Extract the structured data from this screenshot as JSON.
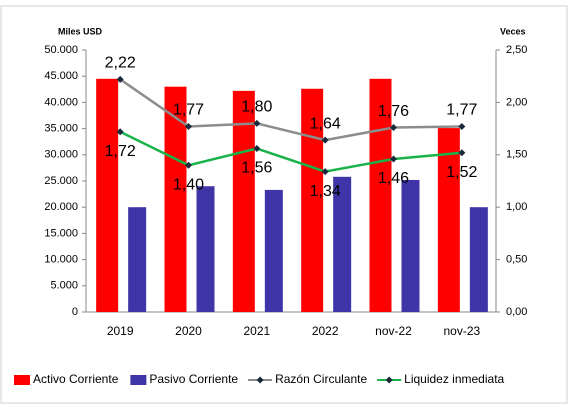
{
  "chart_data": {
    "type": "bar_line",
    "y_label": "Miles USD",
    "y2_label": "Veces",
    "categories": [
      "2019",
      "2020",
      "2021",
      "2022",
      "nov-22",
      "nov-23"
    ],
    "series": [
      {
        "name": "Activo Corriente",
        "color": "#ff0000",
        "kind": "bar",
        "values": [
          44500,
          43000,
          42200,
          42600,
          44500,
          35100
        ]
      },
      {
        "name": "Pasivo Corriente",
        "color": "#3f35a8",
        "kind": "bar",
        "values": [
          20000,
          24000,
          23300,
          25800,
          25200,
          20000
        ]
      },
      {
        "name": "Razón Circulante",
        "color": "#8c8c8c",
        "kind": "line",
        "axis": "y2",
        "values": [
          2.22,
          1.77,
          1.8,
          1.64,
          1.76,
          1.77
        ],
        "value_labels": [
          "2,22",
          "1,77",
          "1,80",
          "1,64",
          "1,76",
          "1,77"
        ]
      },
      {
        "name": "Liquidez inmediata",
        "color": "#19b34a",
        "kind": "line",
        "axis": "y2",
        "values": [
          1.72,
          1.4,
          1.56,
          1.34,
          1.46,
          1.52
        ],
        "value_labels": [
          "1,72",
          "1,40",
          "1,56",
          "1,34",
          "1,46",
          "1,52"
        ]
      }
    ],
    "ylim": [
      0,
      50000
    ],
    "yticks": [
      0,
      {
        "value": 5000,
        "label": "5.000"
      },
      {
        "value": 10000,
        "label": "10.000"
      },
      {
        "value": 15000,
        "label": "15.000"
      },
      {
        "value": 20000,
        "label": "20.000"
      },
      {
        "value": 25000,
        "label": "25.000"
      },
      {
        "value": 30000,
        "label": "30.000"
      },
      {
        "value": 35000,
        "label": "35.000"
      },
      {
        "value": 40000,
        "label": "40.000"
      },
      {
        "value": 45000,
        "label": "45.000"
      },
      {
        "value": 50000,
        "label": "50.000"
      }
    ],
    "y2lim": [
      0,
      2.5
    ],
    "y2ticks": [
      {
        "value": 0,
        "label": "0,00"
      },
      {
        "value": 0.5,
        "label": "0,50"
      },
      {
        "value": 1,
        "label": "1,00"
      },
      {
        "value": 1.5,
        "label": "1,50"
      },
      {
        "value": 2,
        "label": "2,00"
      },
      {
        "value": 2.5,
        "label": "2,50"
      }
    ],
    "legend": "bottom"
  }
}
